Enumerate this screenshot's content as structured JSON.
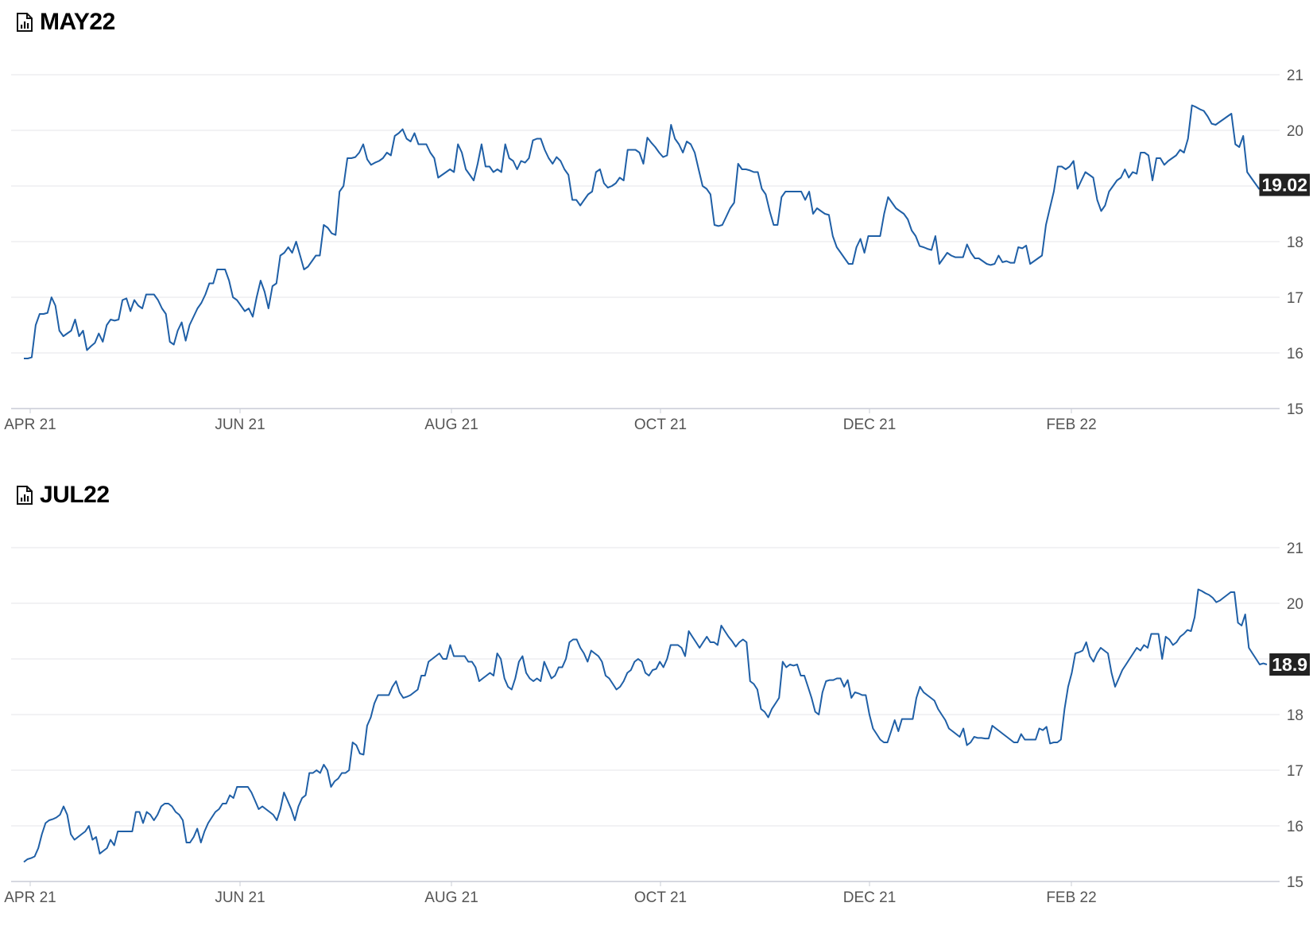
{
  "chart_data": [
    {
      "type": "line",
      "title": "MAY22",
      "x_labels": [
        "APR 21",
        "JUN 21",
        "AUG 21",
        "OCT 21",
        "DEC 21",
        "FEB 22"
      ],
      "y_ticks": [
        15,
        16,
        17,
        18,
        19,
        20,
        21
      ],
      "ylim": [
        15,
        21
      ],
      "last_value": "19.02",
      "line_color": "#1f5fa6",
      "values": [
        15.9,
        15.9,
        15.92,
        16.5,
        16.7,
        16.7,
        16.72,
        17.0,
        16.85,
        16.4,
        16.3,
        16.35,
        16.4,
        16.6,
        16.3,
        16.4,
        16.05,
        16.12,
        16.18,
        16.35,
        16.2,
        16.5,
        16.6,
        16.58,
        16.6,
        16.95,
        16.98,
        16.75,
        16.95,
        16.85,
        16.8,
        17.05,
        17.05,
        17.05,
        16.95,
        16.8,
        16.7,
        16.2,
        16.15,
        16.4,
        16.55,
        16.22,
        16.5,
        16.65,
        16.8,
        16.9,
        17.05,
        17.25,
        17.25,
        17.5,
        17.5,
        17.5,
        17.3,
        17.0,
        16.95,
        16.85,
        16.75,
        16.8,
        16.65,
        17.0,
        17.3,
        17.1,
        16.8,
        17.2,
        17.25,
        17.75,
        17.8,
        17.9,
        17.8,
        18.0,
        17.75,
        17.5,
        17.55,
        17.65,
        17.75,
        17.75,
        18.3,
        18.25,
        18.15,
        18.12,
        18.9,
        19.0,
        19.5,
        19.5,
        19.52,
        19.6,
        19.75,
        19.48,
        19.38,
        19.42,
        19.45,
        19.5,
        19.6,
        19.55,
        19.9,
        19.95,
        20.02,
        19.85,
        19.8,
        19.95,
        19.75,
        19.75,
        19.75,
        19.6,
        19.5,
        19.15,
        19.2,
        19.25,
        19.3,
        19.25,
        19.75,
        19.6,
        19.3,
        19.2,
        19.1,
        19.4,
        19.75,
        19.35,
        19.35,
        19.25,
        19.3,
        19.25,
        19.75,
        19.5,
        19.45,
        19.3,
        19.45,
        19.42,
        19.5,
        19.82,
        19.85,
        19.85,
        19.65,
        19.5,
        19.4,
        19.52,
        19.45,
        19.3,
        19.2,
        18.75,
        18.75,
        18.65,
        18.75,
        18.85,
        18.9,
        19.25,
        19.3,
        19.05,
        18.97,
        19.0,
        19.05,
        19.15,
        19.1,
        19.65,
        19.65,
        19.65,
        19.6,
        19.4,
        19.87,
        19.78,
        19.7,
        19.6,
        19.52,
        19.55,
        20.1,
        19.85,
        19.75,
        19.6,
        19.8,
        19.75,
        19.6,
        19.3,
        19.0,
        18.95,
        18.85,
        18.3,
        18.28,
        18.3,
        18.45,
        18.6,
        18.7,
        19.4,
        19.3,
        19.3,
        19.28,
        19.25,
        19.25,
        18.95,
        18.85,
        18.55,
        18.3,
        18.3,
        18.8,
        18.9,
        18.9,
        18.9,
        18.9,
        18.9,
        18.75,
        18.9,
        18.5,
        18.6,
        18.55,
        18.5,
        18.48,
        18.1,
        17.9,
        17.8,
        17.7,
        17.6,
        17.6,
        17.9,
        18.05,
        17.8,
        18.1,
        18.1,
        18.1,
        18.1,
        18.5,
        18.8,
        18.7,
        18.6,
        18.55,
        18.5,
        18.4,
        18.2,
        18.1,
        17.92,
        17.9,
        17.87,
        17.85,
        18.1,
        17.6,
        17.7,
        17.8,
        17.75,
        17.72,
        17.72,
        17.72,
        17.95,
        17.8,
        17.7,
        17.7,
        17.65,
        17.6,
        17.58,
        17.6,
        17.75,
        17.63,
        17.65,
        17.62,
        17.62,
        17.9,
        17.88,
        17.93,
        17.6,
        17.65,
        17.7,
        17.75,
        18.3,
        18.6,
        18.9,
        19.35,
        19.35,
        19.3,
        19.35,
        19.45,
        18.95,
        19.1,
        19.25,
        19.2,
        19.15,
        18.75,
        18.55,
        18.65,
        18.9,
        19.0,
        19.1,
        19.15,
        19.3,
        19.15,
        19.25,
        19.22,
        19.6,
        19.6,
        19.55,
        19.1,
        19.5,
        19.5,
        19.38,
        19.45,
        19.5,
        19.55,
        19.65,
        19.6,
        19.85,
        20.45,
        20.42,
        20.38,
        20.35,
        20.25,
        20.12,
        20.1,
        20.15,
        20.2,
        20.25,
        20.3,
        19.75,
        19.7,
        19.9,
        19.25,
        19.15,
        19.05,
        18.95,
        18.98,
        19.02
      ]
    },
    {
      "type": "line",
      "title": "JUL22",
      "x_labels": [
        "APR 21",
        "JUN 21",
        "AUG 21",
        "OCT 21",
        "DEC 21",
        "FEB 22"
      ],
      "y_ticks": [
        15,
        16,
        17,
        18,
        19,
        20,
        21
      ],
      "ylim": [
        15,
        21
      ],
      "last_value": "18.9",
      "line_color": "#1f5fa6",
      "values": [
        15.35,
        15.4,
        15.42,
        15.45,
        15.6,
        15.85,
        16.05,
        16.1,
        16.12,
        16.15,
        16.2,
        16.35,
        16.2,
        15.85,
        15.75,
        15.8,
        15.85,
        15.9,
        16.0,
        15.75,
        15.8,
        15.5,
        15.55,
        15.6,
        15.75,
        15.65,
        15.9,
        15.9,
        15.9,
        15.9,
        15.9,
        16.25,
        16.25,
        16.05,
        16.25,
        16.2,
        16.1,
        16.2,
        16.35,
        16.4,
        16.4,
        16.35,
        16.25,
        16.2,
        16.1,
        15.7,
        15.7,
        15.8,
        15.95,
        15.7,
        15.9,
        16.05,
        16.15,
        16.25,
        16.3,
        16.4,
        16.4,
        16.55,
        16.5,
        16.7,
        16.7,
        16.7,
        16.7,
        16.6,
        16.45,
        16.3,
        16.35,
        16.3,
        16.25,
        16.2,
        16.1,
        16.3,
        16.6,
        16.45,
        16.3,
        16.1,
        16.35,
        16.5,
        16.55,
        16.95,
        16.95,
        17.0,
        16.95,
        17.1,
        17.0,
        16.7,
        16.8,
        16.85,
        16.95,
        16.95,
        17.0,
        17.5,
        17.45,
        17.3,
        17.28,
        17.8,
        17.95,
        18.2,
        18.35,
        18.35,
        18.35,
        18.35,
        18.5,
        18.6,
        18.4,
        18.3,
        18.32,
        18.35,
        18.4,
        18.45,
        18.7,
        18.7,
        18.95,
        19.0,
        19.05,
        19.1,
        19.0,
        19.0,
        19.25,
        19.05,
        19.05,
        19.05,
        19.05,
        18.95,
        18.95,
        18.85,
        18.6,
        18.65,
        18.7,
        18.75,
        18.7,
        19.1,
        19.0,
        18.65,
        18.5,
        18.45,
        18.65,
        18.95,
        19.05,
        18.75,
        18.65,
        18.6,
        18.65,
        18.6,
        18.95,
        18.8,
        18.65,
        18.7,
        18.85,
        18.85,
        19.0,
        19.3,
        19.35,
        19.35,
        19.2,
        19.1,
        18.95,
        19.15,
        19.1,
        19.05,
        18.95,
        18.7,
        18.65,
        18.55,
        18.45,
        18.5,
        18.6,
        18.75,
        18.8,
        18.95,
        19.0,
        18.95,
        18.75,
        18.7,
        18.8,
        18.82,
        18.95,
        18.85,
        19.0,
        19.25,
        19.25,
        19.25,
        19.2,
        19.05,
        19.5,
        19.4,
        19.3,
        19.2,
        19.3,
        19.4,
        19.3,
        19.3,
        19.25,
        19.6,
        19.5,
        19.4,
        19.32,
        19.22,
        19.3,
        19.35,
        19.3,
        18.6,
        18.55,
        18.45,
        18.1,
        18.05,
        17.95,
        18.1,
        18.2,
        18.3,
        18.95,
        18.85,
        18.9,
        18.88,
        18.9,
        18.7,
        18.7,
        18.5,
        18.3,
        18.05,
        18.0,
        18.4,
        18.6,
        18.62,
        18.62,
        18.65,
        18.65,
        18.5,
        18.62,
        18.3,
        18.4,
        18.38,
        18.35,
        18.35,
        18.0,
        17.75,
        17.65,
        17.55,
        17.5,
        17.5,
        17.7,
        17.9,
        17.7,
        17.92,
        17.92,
        17.92,
        17.92,
        18.3,
        18.5,
        18.4,
        18.35,
        18.3,
        18.25,
        18.1,
        18.0,
        17.9,
        17.75,
        17.7,
        17.65,
        17.6,
        17.75,
        17.45,
        17.5,
        17.6,
        17.58,
        17.58,
        17.57,
        17.57,
        17.8,
        17.75,
        17.7,
        17.65,
        17.6,
        17.55,
        17.5,
        17.5,
        17.65,
        17.55,
        17.55,
        17.55,
        17.55,
        17.75,
        17.72,
        17.78,
        17.48,
        17.5,
        17.5,
        17.55,
        18.1,
        18.5,
        18.75,
        19.1,
        19.12,
        19.15,
        19.3,
        19.05,
        18.95,
        19.1,
        19.2,
        19.15,
        19.1,
        18.75,
        18.5,
        18.65,
        18.8,
        18.9,
        19.0,
        19.1,
        19.2,
        19.15,
        19.25,
        19.2,
        19.45,
        19.45,
        19.45,
        19.0,
        19.4,
        19.35,
        19.25,
        19.3,
        19.4,
        19.45,
        19.52,
        19.5,
        19.75,
        20.25,
        20.22,
        20.18,
        20.15,
        20.1,
        20.02,
        20.05,
        20.1,
        20.15,
        20.2,
        20.2,
        19.65,
        19.6,
        19.8,
        19.2,
        19.1,
        19.0,
        18.9,
        18.92,
        18.9
      ]
    }
  ]
}
